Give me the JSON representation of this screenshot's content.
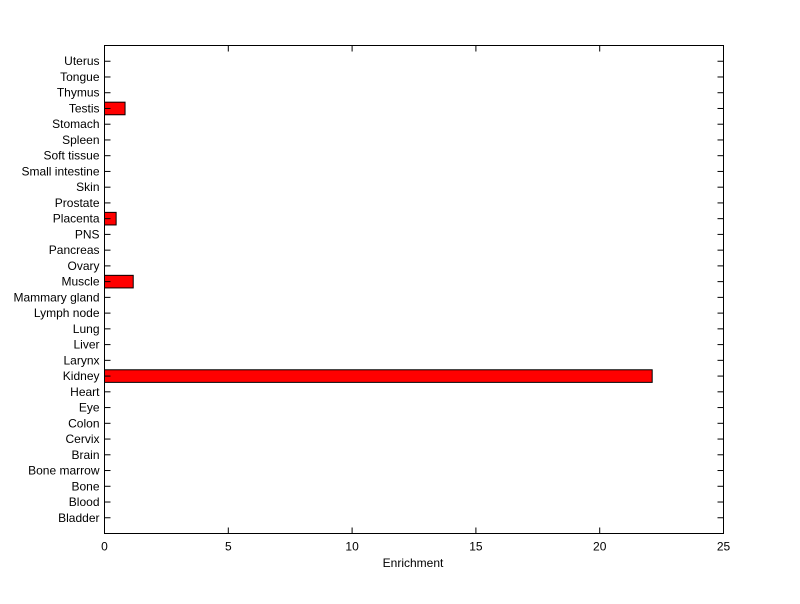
{
  "chart_data": {
    "type": "bar",
    "orientation": "horizontal",
    "title": "",
    "xlabel": "Enrichment",
    "ylabel": "",
    "xlim": [
      0,
      25
    ],
    "xticks": [
      0,
      5,
      10,
      15,
      20,
      25
    ],
    "grid": false,
    "bar_color": "#ff0000",
    "bar_edge_color": "#000000",
    "categories": [
      "Bladder",
      "Blood",
      "Bone",
      "Bone marrow",
      "Brain",
      "Cervix",
      "Colon",
      "Eye",
      "Heart",
      "Kidney",
      "Larynx",
      "Liver",
      "Lung",
      "Lymph node",
      "Mammary gland",
      "Muscle",
      "Ovary",
      "Pancreas",
      "PNS",
      "Placenta",
      "Prostate",
      "Skin",
      "Small intestine",
      "Soft tissue",
      "Spleen",
      "Stomach",
      "Testis",
      "Thymus",
      "Tongue",
      "Uterus"
    ],
    "values": [
      0,
      0,
      0,
      0,
      0,
      0,
      0,
      0,
      0,
      22.12,
      0,
      0,
      0,
      0,
      0,
      1.16,
      0,
      0,
      0,
      0.47,
      0,
      0,
      0,
      0,
      0,
      0,
      0.83,
      0,
      0,
      0
    ]
  }
}
